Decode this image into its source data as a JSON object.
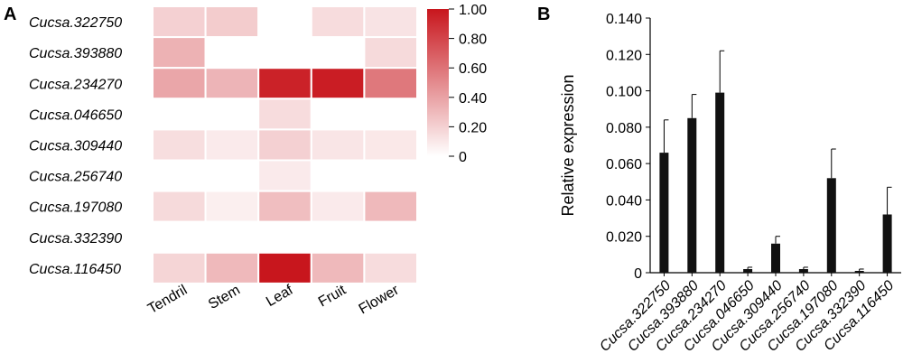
{
  "chart_data": [
    {
      "panel_label": "A",
      "type": "heatmap",
      "rows": [
        "Cucsa.322750",
        "Cucsa.393880",
        "Cucsa.234270",
        "Cucsa.046650",
        "Cucsa.309440",
        "Cucsa.256740",
        "Cucsa.197080",
        "Cucsa.332390",
        "Cucsa.116450"
      ],
      "columns": [
        "Tendril",
        "Stem",
        "Leaf",
        "Fruit",
        "Flower"
      ],
      "values": [
        [
          0.2,
          0.22,
          0.0,
          0.15,
          0.12
        ],
        [
          0.33,
          0.0,
          0.0,
          0.0,
          0.16
        ],
        [
          0.38,
          0.32,
          0.95,
          0.97,
          0.58
        ],
        [
          0.0,
          0.0,
          0.15,
          0.0,
          0.0
        ],
        [
          0.14,
          0.09,
          0.2,
          0.11,
          0.1
        ],
        [
          0.0,
          0.0,
          0.09,
          0.0,
          0.0
        ],
        [
          0.16,
          0.07,
          0.28,
          0.09,
          0.3
        ],
        [
          0.0,
          0.0,
          0.0,
          0.0,
          0.0
        ],
        [
          0.18,
          0.3,
          1.0,
          0.3,
          0.15
        ]
      ],
      "colorbar": {
        "ticks": [
          "1.00",
          "0.80",
          "0.60",
          "0.40",
          "0.20",
          "0"
        ],
        "range": [
          0,
          1
        ],
        "color_high": "#c8161d",
        "color_low": "#ffffff"
      }
    },
    {
      "panel_label": "B",
      "type": "bar",
      "ylabel": "Relative expression",
      "ylim": [
        0,
        0.14
      ],
      "y_ticks": [
        "0",
        "0.020",
        "0.040",
        "0.060",
        "0.080",
        "0.100",
        "0.120",
        "0.140"
      ],
      "categories": [
        "Cucsa.322750",
        "Cucsa.393880",
        "Cucsa.234270",
        "Cucsa.046650",
        "Cucsa.309440",
        "Cucsa.256740",
        "Cucsa.197080",
        "Cucsa.332390",
        "Cucsa.116450"
      ],
      "values": [
        0.066,
        0.085,
        0.099,
        0.002,
        0.016,
        0.002,
        0.052,
        0.001,
        0.032
      ],
      "errors": [
        0.018,
        0.013,
        0.023,
        0.001,
        0.004,
        0.001,
        0.016,
        0.001,
        0.015
      ],
      "bar_color": "#111111"
    }
  ]
}
